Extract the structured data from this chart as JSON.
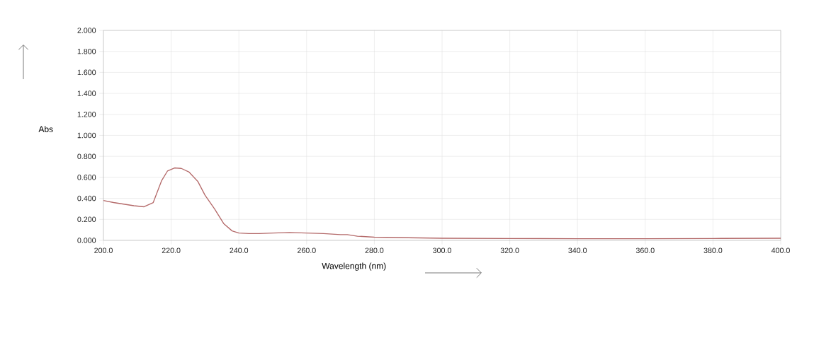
{
  "chart_data": {
    "type": "line",
    "xlabel": "Wavelength (nm)",
    "ylabel": "Abs",
    "x": [
      200,
      203,
      206,
      209,
      212,
      214.7,
      217.2,
      218.9,
      221,
      223,
      225.3,
      227.9,
      230,
      232.8,
      235.5,
      238,
      240,
      243,
      246,
      250,
      255,
      260,
      265,
      270,
      272,
      275,
      280,
      290,
      300,
      320,
      340,
      360,
      380,
      400
    ],
    "series": [
      {
        "color": "#b46a6a",
        "values": [
          0.38,
          0.36,
          0.345,
          0.33,
          0.32,
          0.36,
          0.57,
          0.66,
          0.69,
          0.685,
          0.65,
          0.56,
          0.43,
          0.3,
          0.16,
          0.09,
          0.07,
          0.065,
          0.065,
          0.07,
          0.075,
          0.07,
          0.065,
          0.055,
          0.055,
          0.04,
          0.03,
          0.025,
          0.02,
          0.018,
          0.015,
          0.015,
          0.018,
          0.02
        ]
      }
    ],
    "xlim": [
      200,
      400
    ],
    "ylim": [
      0,
      2
    ],
    "xticks": [
      {
        "value": 200,
        "label": "200.0"
      },
      {
        "value": 220,
        "label": "220.0"
      },
      {
        "value": 240,
        "label": "240.0"
      },
      {
        "value": 260,
        "label": "260.0"
      },
      {
        "value": 280,
        "label": "280.0"
      },
      {
        "value": 300,
        "label": "300.0"
      },
      {
        "value": 320,
        "label": "320.0"
      },
      {
        "value": 340,
        "label": "340.0"
      },
      {
        "value": 360,
        "label": "360.0"
      },
      {
        "value": 380,
        "label": "380.0"
      },
      {
        "value": 400,
        "label": "400.0"
      }
    ],
    "yticks": [
      {
        "value": 0,
        "label": "0.000"
      },
      {
        "value": 0.2,
        "label": "0.200"
      },
      {
        "value": 0.4,
        "label": "0.400"
      },
      {
        "value": 0.6,
        "label": "0.600"
      },
      {
        "value": 0.8,
        "label": "0.800"
      },
      {
        "value": 1.0,
        "label": "1.000"
      },
      {
        "value": 1.2,
        "label": "1.200"
      },
      {
        "value": 1.4,
        "label": "1.400"
      },
      {
        "value": 1.6,
        "label": "1.600"
      },
      {
        "value": 1.8,
        "label": "1.800"
      },
      {
        "value": 2.0,
        "label": "2.000"
      }
    ],
    "grid": true
  }
}
